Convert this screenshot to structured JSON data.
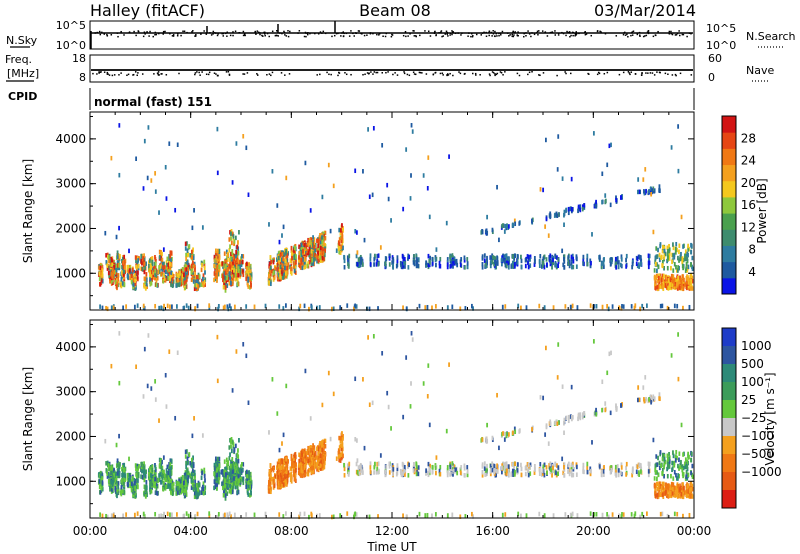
{
  "header": {
    "station": "Halley (fitACF)",
    "beam": "Beam 08",
    "date": "03/Mar/2014",
    "mode": "normal (fast) 151"
  },
  "strips": {
    "nsky_label": "N.Sky",
    "nsearch_label": "N.Search",
    "sky_tick_hi": "10^5",
    "sky_tick_lo": "10^0",
    "freq_label_1": "Freq.",
    "freq_label_2": "[MHz]",
    "freq_tick_hi": "18",
    "freq_tick_lo": "8",
    "nave_label": "Nave",
    "nave_tick_hi": "60",
    "nave_tick_lo": "0",
    "cpid_label": "CPID"
  },
  "chart_data": [
    {
      "type": "heatmap",
      "title": "",
      "xlabel": "Time UT",
      "ylabel": "Slant Range [km]",
      "x_ticks": [
        "00:00",
        "04:00",
        "08:00",
        "12:00",
        "16:00",
        "20:00",
        "00:00"
      ],
      "xlim_hours": [
        0,
        24
      ],
      "y_ticks": [
        1000,
        2000,
        3000,
        4000
      ],
      "ylim": [
        180,
        4600
      ],
      "colorbar": {
        "label": "Power [dB]",
        "ticks": [
          "4",
          "8",
          "12",
          "16",
          "20",
          "24",
          "28"
        ],
        "colors": [
          "#0a14e6",
          "#1e5aa0",
          "#2e7ca0",
          "#3e8c6e",
          "#4aa04e",
          "#8ec83c",
          "#f4c81e",
          "#f4a01e",
          "#f07814",
          "#e64614",
          "#d21414"
        ]
      },
      "regions": [
        {
          "t": [
            0.2,
            6.5
          ],
          "range": [
            550,
            1700
          ],
          "level": "mixed-high"
        },
        {
          "t": [
            7.0,
            10.0
          ],
          "range": [
            800,
            2050
          ],
          "level": "mixed-high"
        },
        {
          "t": [
            10.0,
            22.0
          ],
          "range": [
            1150,
            1450
          ],
          "level": "low"
        },
        {
          "t": [
            15.0,
            23.0
          ],
          "range": [
            1900,
            2950
          ],
          "level": "low"
        },
        {
          "t": [
            22.5,
            24.0
          ],
          "range": [
            700,
            1700
          ],
          "level": "mixed"
        }
      ]
    },
    {
      "type": "heatmap",
      "title": "",
      "xlabel": "Time UT",
      "ylabel": "Slant Range [km]",
      "x_ticks": [
        "00:00",
        "04:00",
        "08:00",
        "12:00",
        "16:00",
        "20:00",
        "00:00"
      ],
      "xlim_hours": [
        0,
        24
      ],
      "y_ticks": [
        1000,
        2000,
        3000,
        4000
      ],
      "ylim": [
        180,
        4600
      ],
      "colorbar": {
        "label": "Velocity [m s⁻¹]",
        "ticks": [
          "1000",
          "500",
          "100",
          "25",
          "−25",
          "−100",
          "−500",
          "−1000"
        ],
        "colors": [
          "#1e3cc8",
          "#2d55a0",
          "#2d8a78",
          "#3c9c5a",
          "#64c83c",
          "#c8c8c8",
          "#f4a01e",
          "#f07814",
          "#e65a14",
          "#dc1e14"
        ]
      },
      "regions": [
        {
          "t": [
            0.2,
            6.5
          ],
          "range": [
            550,
            1700
          ],
          "velocity": "positive (green)"
        },
        {
          "t": [
            7.0,
            10.0
          ],
          "range": [
            800,
            2050
          ],
          "velocity": "negative (orange)"
        },
        {
          "t": [
            10.0,
            22.0
          ],
          "range": [
            1150,
            1450
          ],
          "velocity": "near zero (grey)"
        },
        {
          "t": [
            22.5,
            24.0
          ],
          "range": [
            700,
            1000
          ],
          "velocity": "negative (orange)"
        }
      ]
    }
  ]
}
